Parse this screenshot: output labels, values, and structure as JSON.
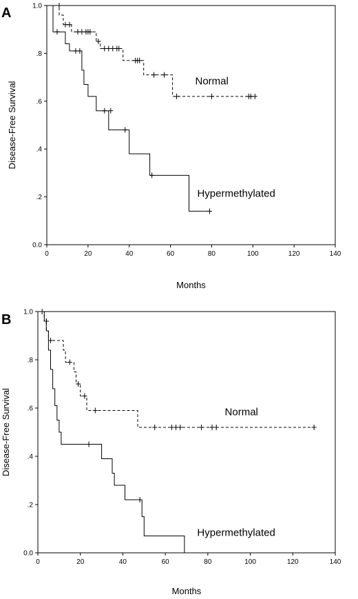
{
  "chart_data": [
    {
      "type": "line",
      "panel": "A",
      "xlabel": "Months",
      "ylabel": "Disease-Free Survival",
      "xlim": [
        0,
        140
      ],
      "ylim": [
        0,
        1
      ],
      "xticks": [
        0,
        20,
        40,
        60,
        80,
        100,
        120,
        140
      ],
      "yticks": [
        {
          "value": 0.0,
          "label": "0.0"
        },
        {
          "value": 0.2,
          "label": ".2"
        },
        {
          "value": 0.4,
          "label": ".4"
        },
        {
          "value": 0.6,
          "label": ".6"
        },
        {
          "value": 0.8,
          "label": ".8"
        },
        {
          "value": 1.0,
          "label": "1.0"
        }
      ],
      "grid": false,
      "series": [
        {
          "name": "Normal",
          "style": "dashed",
          "steps": [
            [
              0,
              1.0
            ],
            [
              6,
              1.0
            ],
            [
              6,
              0.96
            ],
            [
              8,
              0.96
            ],
            [
              8,
              0.92
            ],
            [
              12,
              0.92
            ],
            [
              12,
              0.89
            ],
            [
              24,
              0.89
            ],
            [
              24,
              0.85
            ],
            [
              26,
              0.85
            ],
            [
              26,
              0.82
            ],
            [
              37,
              0.82
            ],
            [
              37,
              0.77
            ],
            [
              47,
              0.77
            ],
            [
              47,
              0.71
            ],
            [
              61,
              0.71
            ],
            [
              61,
              0.62
            ],
            [
              101,
              0.62
            ]
          ],
          "censored": [
            [
              6,
              1.0
            ],
            [
              9,
              0.92
            ],
            [
              11,
              0.92
            ],
            [
              15,
              0.89
            ],
            [
              17,
              0.89
            ],
            [
              19,
              0.89
            ],
            [
              20,
              0.89
            ],
            [
              21,
              0.89
            ],
            [
              25,
              0.85
            ],
            [
              28,
              0.82
            ],
            [
              30,
              0.82
            ],
            [
              32,
              0.82
            ],
            [
              34,
              0.82
            ],
            [
              35,
              0.82
            ],
            [
              43,
              0.77
            ],
            [
              44,
              0.77
            ],
            [
              45,
              0.77
            ],
            [
              52,
              0.71
            ],
            [
              57,
              0.71
            ],
            [
              63,
              0.62
            ],
            [
              80,
              0.62
            ],
            [
              98,
              0.62
            ],
            [
              99,
              0.62
            ],
            [
              101,
              0.62
            ]
          ],
          "label_pos": [
            72,
            0.67
          ]
        },
        {
          "name": "Hypermethylated",
          "style": "solid",
          "steps": [
            [
              0,
              1.0
            ],
            [
              3,
              1.0
            ],
            [
              3,
              0.89
            ],
            [
              9,
              0.89
            ],
            [
              9,
              0.84
            ],
            [
              11,
              0.84
            ],
            [
              11,
              0.81
            ],
            [
              17,
              0.81
            ],
            [
              17,
              0.73
            ],
            [
              18,
              0.73
            ],
            [
              18,
              0.67
            ],
            [
              20,
              0.67
            ],
            [
              20,
              0.62
            ],
            [
              24,
              0.62
            ],
            [
              24,
              0.56
            ],
            [
              30,
              0.56
            ],
            [
              30,
              0.48
            ],
            [
              40,
              0.48
            ],
            [
              40,
              0.38
            ],
            [
              50,
              0.38
            ],
            [
              50,
              0.29
            ],
            [
              69,
              0.29
            ],
            [
              69,
              0.14
            ],
            [
              79,
              0.14
            ]
          ],
          "censored": [
            [
              5,
              0.89
            ],
            [
              14,
              0.81
            ],
            [
              16,
              0.81
            ],
            [
              28,
              0.56
            ],
            [
              31,
              0.56
            ],
            [
              38,
              0.48
            ],
            [
              51,
              0.29
            ],
            [
              79,
              0.14
            ]
          ],
          "label_pos": [
            73,
            0.2
          ]
        }
      ]
    },
    {
      "type": "line",
      "panel": "B",
      "xlabel": "Months",
      "ylabel": "Disease-Free Survival",
      "xlim": [
        0,
        140
      ],
      "ylim": [
        0,
        1
      ],
      "xticks": [
        0,
        20,
        40,
        60,
        80,
        100,
        120,
        140
      ],
      "yticks": [
        {
          "value": 0.0,
          "label": "0.0"
        },
        {
          "value": 0.2,
          "label": ".2"
        },
        {
          "value": 0.4,
          "label": ".4"
        },
        {
          "value": 0.6,
          "label": ".6"
        },
        {
          "value": 0.8,
          "label": ".8"
        },
        {
          "value": 1.0,
          "label": "1.0"
        }
      ],
      "grid": false,
      "series": [
        {
          "name": "Normal",
          "style": "dashed",
          "steps": [
            [
              0,
              1.0
            ],
            [
              3,
              1.0
            ],
            [
              3,
              0.96
            ],
            [
              4,
              0.96
            ],
            [
              4,
              0.92
            ],
            [
              5,
              0.92
            ],
            [
              5,
              0.88
            ],
            [
              12,
              0.88
            ],
            [
              12,
              0.84
            ],
            [
              13,
              0.84
            ],
            [
              13,
              0.79
            ],
            [
              17,
              0.79
            ],
            [
              17,
              0.75
            ],
            [
              18,
              0.75
            ],
            [
              18,
              0.7
            ],
            [
              20,
              0.7
            ],
            [
              20,
              0.65
            ],
            [
              23,
              0.65
            ],
            [
              23,
              0.59
            ],
            [
              47,
              0.59
            ],
            [
              47,
              0.52
            ],
            [
              130,
              0.52
            ]
          ],
          "censored": [
            [
              2,
              1.0
            ],
            [
              4,
              0.96
            ],
            [
              6,
              0.88
            ],
            [
              15,
              0.79
            ],
            [
              19,
              0.7
            ],
            [
              22,
              0.65
            ],
            [
              27,
              0.59
            ],
            [
              55,
              0.52
            ],
            [
              63,
              0.52
            ],
            [
              65,
              0.52
            ],
            [
              67,
              0.52
            ],
            [
              77,
              0.52
            ],
            [
              82,
              0.52
            ],
            [
              84,
              0.52
            ],
            [
              130,
              0.52
            ]
          ],
          "label_pos": [
            88,
            0.57
          ]
        },
        {
          "name": "Hypermethylated",
          "style": "solid",
          "steps": [
            [
              0,
              1.0
            ],
            [
              3,
              1.0
            ],
            [
              3,
              0.96
            ],
            [
              4,
              0.96
            ],
            [
              4,
              0.92
            ],
            [
              5,
              0.92
            ],
            [
              5,
              0.84
            ],
            [
              6,
              0.84
            ],
            [
              6,
              0.76
            ],
            [
              7,
              0.76
            ],
            [
              7,
              0.68
            ],
            [
              8,
              0.68
            ],
            [
              8,
              0.61
            ],
            [
              9,
              0.61
            ],
            [
              9,
              0.55
            ],
            [
              10,
              0.55
            ],
            [
              10,
              0.5
            ],
            [
              11,
              0.5
            ],
            [
              11,
              0.45
            ],
            [
              30,
              0.45
            ],
            [
              30,
              0.39
            ],
            [
              35,
              0.39
            ],
            [
              35,
              0.33
            ],
            [
              36,
              0.33
            ],
            [
              36,
              0.28
            ],
            [
              41,
              0.28
            ],
            [
              41,
              0.22
            ],
            [
              49,
              0.22
            ],
            [
              49,
              0.15
            ],
            [
              50,
              0.15
            ],
            [
              50,
              0.07
            ],
            [
              69,
              0.07
            ],
            [
              69,
              0.0
            ]
          ],
          "censored": [
            [
              4,
              0.96
            ],
            [
              24,
              0.45
            ],
            [
              48,
              0.22
            ]
          ],
          "label_pos": [
            75,
            0.07
          ]
        }
      ]
    }
  ]
}
